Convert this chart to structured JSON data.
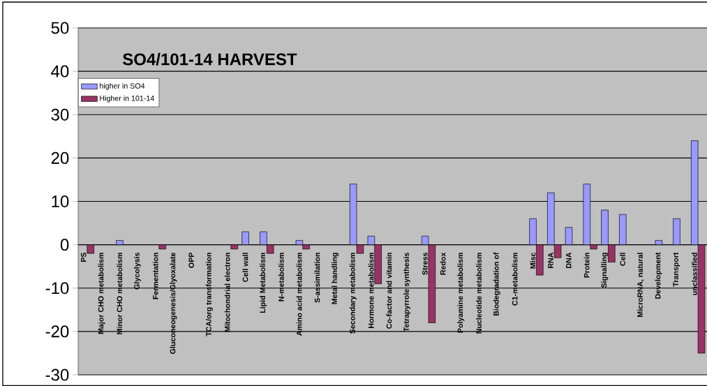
{
  "chart_data": {
    "type": "bar",
    "title": "SO4/101-14 HARVEST",
    "categories": [
      "PS",
      "Major CHO metabolism",
      "Minor CHO metabolism",
      "Glycolysis",
      "Fermentation",
      "Gluconeogenesis/Glyoxalate",
      "OPP",
      "TCA/org transformation",
      "Mitochondrial electron",
      "Cell wall",
      "Lipid Metabolism",
      "N-metabolism",
      "Amino acid metabolism",
      "S-assimilation",
      "Metal handling",
      "Secondary metabolism",
      "Hormone metabolism",
      "Co-factor and vitamin",
      "Tetrapyrrole synthesis",
      "Stress",
      "Redox",
      "Polyamine metabolism",
      "Nucleotide metabolism",
      "Biodegradation of",
      "C1-metabolism",
      "Misc",
      "RNA",
      "DNA",
      "Protein",
      "Signalling",
      "Cell",
      "MicroRNA, natural",
      "Development",
      "Transport",
      "unclassified"
    ],
    "series": [
      {
        "name": "higher in SO4",
        "color": "#9999ff",
        "values": [
          0,
          0,
          1,
          0,
          0,
          0,
          0,
          0,
          0,
          3,
          3,
          0,
          1,
          0,
          0,
          14,
          2,
          0,
          0,
          2,
          0,
          0,
          0,
          0,
          0,
          6,
          12,
          4,
          14,
          8,
          7,
          0,
          1,
          6,
          24
        ]
      },
      {
        "name": "Higher in 101-14",
        "color": "#993366",
        "values": [
          -2,
          0,
          0,
          0,
          -1,
          0,
          0,
          0,
          -1,
          0,
          -2,
          0,
          -1,
          0,
          0,
          -2,
          -9,
          0,
          0,
          -18,
          0,
          0,
          0,
          0,
          0,
          -7,
          -3,
          0,
          -1,
          -4,
          0,
          0,
          0,
          0,
          -25
        ]
      }
    ],
    "ylim": [
      -30,
      50
    ],
    "yticks": [
      -30,
      -20,
      -10,
      0,
      10,
      20,
      30,
      40,
      50
    ],
    "grid": "y",
    "legend": "top left"
  }
}
